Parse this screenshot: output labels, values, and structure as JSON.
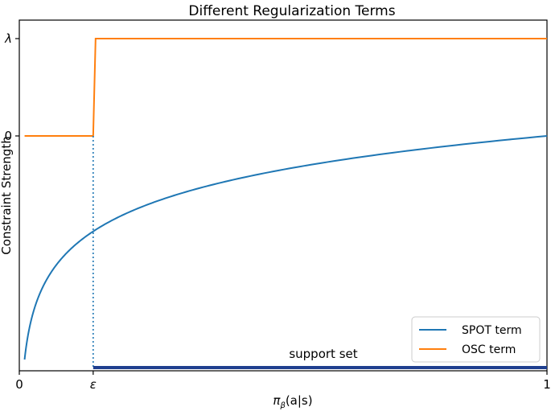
{
  "chart_data": {
    "type": "line",
    "title": "Different Regularization Terms",
    "xlabel_base": "π",
    "xlabel_sub": "β",
    "xlabel_rest": "(a|s)",
    "ylabel": "Constraint Strength",
    "xlim": [
      0,
      1
    ],
    "y_ticks": [
      "λ",
      "0"
    ],
    "x_ticks": [
      {
        "label": "0",
        "value": 0
      },
      {
        "label": "ε",
        "value": 0.14
      },
      {
        "label": "1",
        "value": 1
      }
    ],
    "epsilon": 0.14,
    "series": [
      {
        "name": "SPOT term",
        "color": "#1f77b4",
        "function": "log",
        "x_start": 0.01
      },
      {
        "name": "OSC term",
        "color": "#ff7f0e",
        "function": "step",
        "low": 0,
        "high": "λ"
      }
    ],
    "support_set": {
      "label": "support set",
      "from": 0.14,
      "to": 1,
      "color": "#1f3f8f"
    },
    "legend": {
      "position": "lower-right",
      "entries": [
        "SPOT term",
        "OSC term"
      ]
    },
    "grid": false
  }
}
